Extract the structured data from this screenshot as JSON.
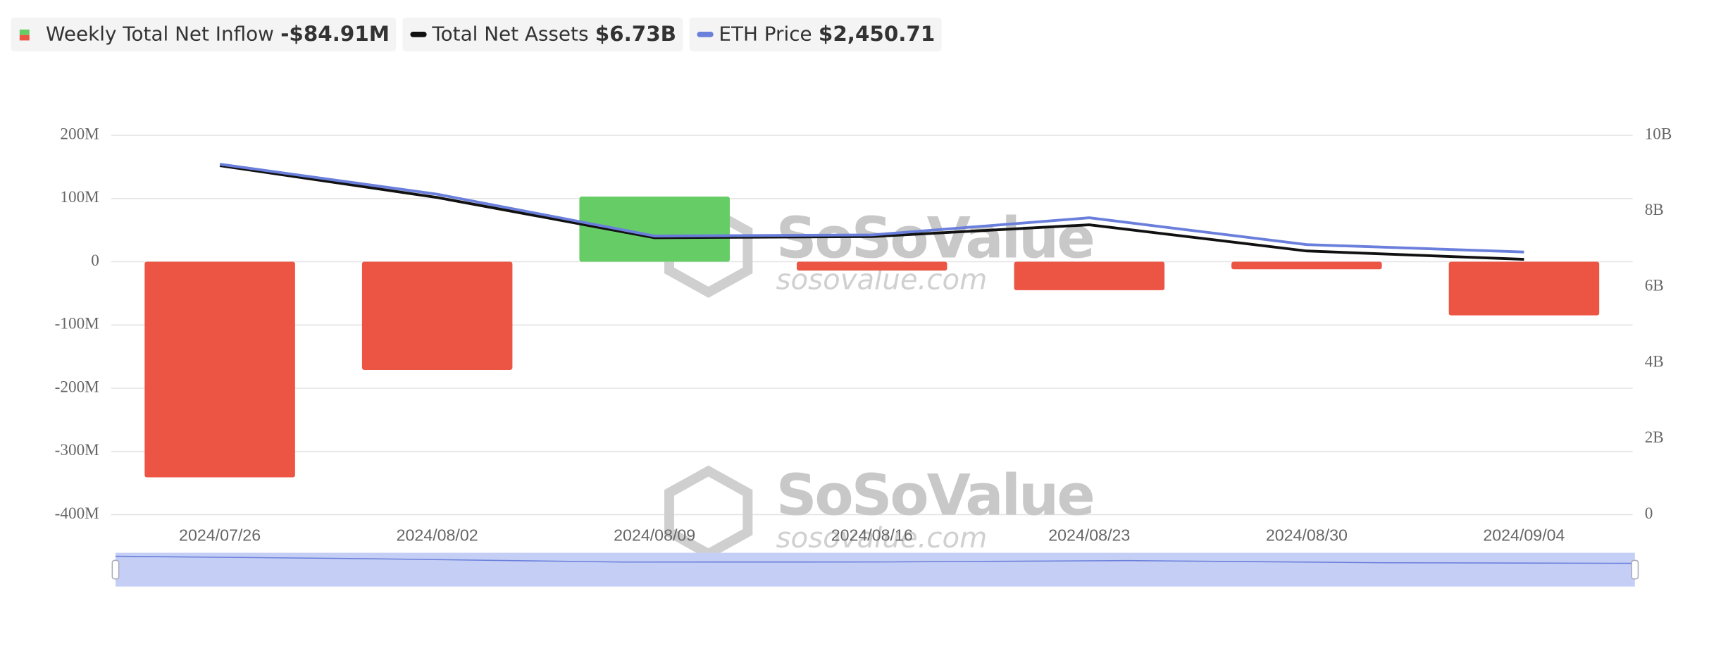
{
  "chart_data": {
    "type": "bar",
    "categories": [
      "2024/07/26",
      "2024/08/02",
      "2024/08/09",
      "2024/08/16",
      "2024/08/23",
      "2024/08/30",
      "2024/09/04"
    ],
    "series": [
      {
        "name": "Weekly Total Net Inflow",
        "type": "bar",
        "positive_color": "#66cc66",
        "negative_color": "#ec5444",
        "values": [
          -341,
          -171,
          103,
          -14,
          -45,
          -12,
          -84.91
        ],
        "legend_value": "-$84.91M"
      },
      {
        "name": "Total Net Assets",
        "type": "line",
        "axis": "y2",
        "color": "#111111",
        "values": [
          9.2,
          8.36,
          7.3,
          7.33,
          7.64,
          6.95,
          6.73
        ],
        "legend_value": "$6.73B"
      },
      {
        "name": "ETH Price",
        "type": "line",
        "axis": "y3",
        "color": "#6a7fdb",
        "values": [
          3270,
          2990,
          2600,
          2610,
          2770,
          2520,
          2450.71
        ],
        "legend_value": "$2,450.71"
      }
    ],
    "ylim": [
      -400,
      200
    ],
    "yticks": [
      {
        "value": -400,
        "label": "-400M"
      },
      {
        "value": -300,
        "label": "-300M"
      },
      {
        "value": -200,
        "label": "-200M"
      },
      {
        "value": -100,
        "label": "-100M"
      },
      0,
      {
        "value": 100,
        "label": "100M"
      },
      {
        "value": 200,
        "label": "200M"
      }
    ],
    "y2lim": [
      0,
      10
    ],
    "y2ticks": [
      0,
      {
        "value": 2,
        "label": "2B"
      },
      {
        "value": 4,
        "label": "4B"
      },
      {
        "value": 6,
        "label": "6B"
      },
      {
        "value": 8,
        "label": "8B"
      },
      {
        "value": 10,
        "label": "10B"
      }
    ],
    "y3lim": [
      0,
      3540
    ],
    "grid": true,
    "watermark": {
      "brand": "SoSoValue",
      "site": "sosovalue.com"
    }
  }
}
